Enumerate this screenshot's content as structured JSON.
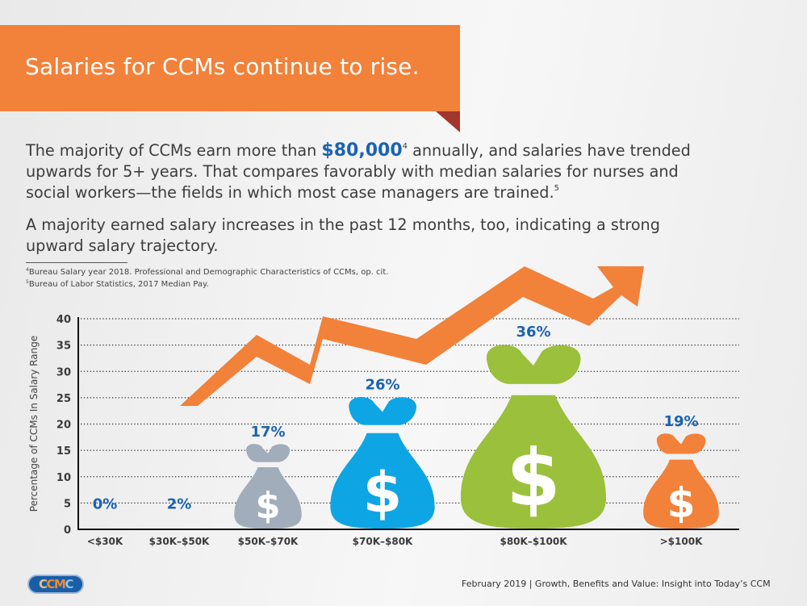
{
  "banner": {
    "title": "Salaries for CCMs continue to rise."
  },
  "paragraph1": {
    "line1_pre": "The majority of CCMs earn more than ",
    "highlight": "$80,000",
    "sup": "4",
    "line1_post": " annually, and salaries have trended",
    "line2": "upwards for 5+ years. That compares favorably with median salaries for nurses and",
    "line3": "social workers—the fields in which most case managers are trained.",
    "line3_sup": "5"
  },
  "paragraph2": {
    "line1": "A majority earned salary increases in the past 12 months, too, indicating a strong",
    "line2": "upward salary trajectory."
  },
  "footnotes": [
    {
      "num": "4",
      "text": "Bureau Salary year 2018. Professional and Demographic Characteristics of CCMs, op. cit."
    },
    {
      "num": "5",
      "text": "Bureau of Labor Statistics, 2017 Median Pay."
    }
  ],
  "colors": {
    "banner": "#f2813a",
    "banner_fold": "#a3352f",
    "value_label": "#1b63b0",
    "arrow": "#f2813a"
  },
  "chart_data": {
    "type": "bar",
    "title": "",
    "xlabel": "",
    "ylabel": "Percentage of CCMs In Salary Range",
    "ylim": [
      0,
      40
    ],
    "yticks": [
      0,
      5,
      10,
      15,
      20,
      25,
      30,
      35,
      40
    ],
    "grid": true,
    "categories": [
      "<$30K",
      "$30K–$50K",
      "$50K–$70K",
      "$70K–$80K",
      "$80K–$100K",
      ">$100K"
    ],
    "values": [
      0,
      2,
      17,
      26,
      36,
      19
    ],
    "labels": [
      "0%",
      "2%",
      "17%",
      "26%",
      "36%",
      "19%"
    ],
    "mark": "money-bag",
    "bag_colors": [
      "none",
      "none",
      "#a2adbb",
      "#0ea5e4",
      "#9bc03b",
      "#f2813a"
    ],
    "annotations": [
      "upward trend arrow"
    ]
  },
  "footer": {
    "logo_parts": [
      "C",
      "C",
      "M",
      "C"
    ],
    "citation": "February 2019 | Growth, Benefits and Value: Insight into Today’s CCM"
  }
}
